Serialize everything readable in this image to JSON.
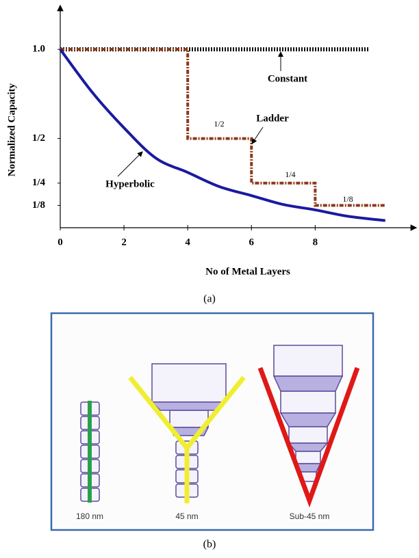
{
  "chart_data": {
    "type": "line",
    "y_label": "Normalized Capacity",
    "x_label": "No of Metal Layers",
    "caption": "(a)",
    "xlim": [
      0,
      11
    ],
    "ylim": [
      0,
      1.2
    ],
    "xticks": [
      0,
      2,
      4,
      6,
      8
    ],
    "yticks": [
      {
        "value": 1,
        "label": "1.0"
      },
      {
        "value": 0.5,
        "label": "1/2"
      },
      {
        "value": 0.25,
        "label": "1/4"
      },
      {
        "value": 0.125,
        "label": "1/8"
      }
    ],
    "series": [
      {
        "name": "Constant",
        "color": "#111111",
        "style": "dotted",
        "x": [
          0,
          9.7
        ],
        "values": [
          1,
          1
        ]
      },
      {
        "name": "Ladder",
        "color": "#8b3a1a",
        "style": "dashdot",
        "x": [
          0,
          4,
          4,
          6,
          6,
          8,
          8,
          10.2
        ],
        "values": [
          1,
          1,
          0.5,
          0.5,
          0.25,
          0.25,
          0.125,
          0.125
        ]
      },
      {
        "name": "Hyperbolic",
        "color": "#1a1aa0",
        "style": "solid",
        "x": [
          0,
          1,
          2,
          3,
          4,
          5,
          6,
          7,
          8,
          9,
          10.2
        ],
        "values": [
          1,
          0.76,
          0.56,
          0.39,
          0.31,
          0.23,
          0.18,
          0.13,
          0.1,
          0.065,
          0.04
        ]
      }
    ],
    "annotations": [
      "1/2",
      "1/4",
      "1/8"
    ]
  },
  "diagram": {
    "labels": [
      "180 nm",
      "45 nm",
      "Sub-45 nm"
    ],
    "caption": "(b)"
  }
}
